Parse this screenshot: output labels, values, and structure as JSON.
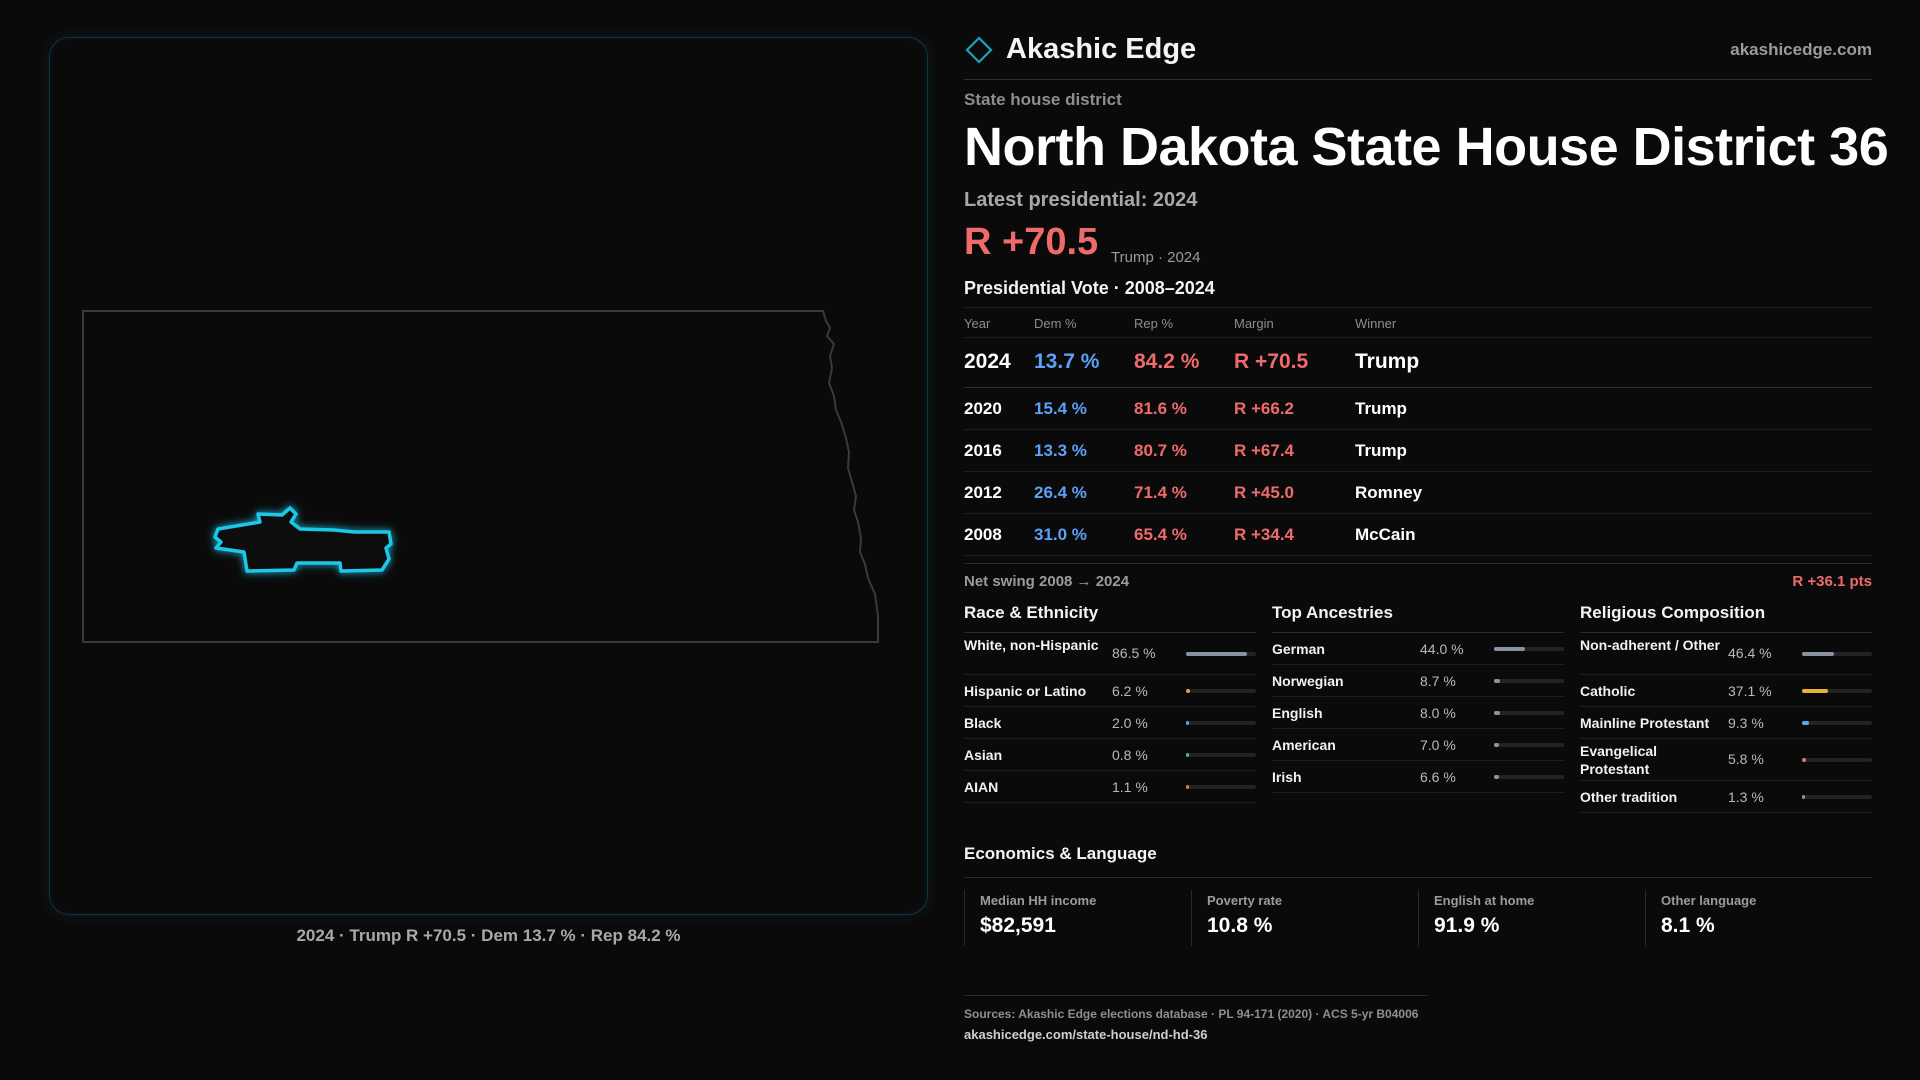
{
  "brand": {
    "name": "Akashic Edge",
    "url": "akashicedge.com"
  },
  "district": {
    "kind": "State house district",
    "title": "North Dakota State House District 36",
    "latest_label": "Latest presidential: 2024",
    "margin": "R +70.5",
    "margin_note": "Trump · 2024"
  },
  "map": {
    "caption": "2024 · Trump R +70.5 · Dem 13.7 % · Rep 84.2 %"
  },
  "presidential": {
    "title": "Presidential Vote · 2008–2024",
    "headers": {
      "year": "Year",
      "dem": "Dem %",
      "rep": "Rep %",
      "margin": "Margin",
      "winner": "Winner"
    },
    "rows": [
      {
        "year": "2024",
        "dem": "13.7 %",
        "rep": "84.2 %",
        "margin": "R +70.5",
        "winner": "Trump"
      },
      {
        "year": "2020",
        "dem": "15.4 %",
        "rep": "81.6 %",
        "margin": "R +66.2",
        "winner": "Trump"
      },
      {
        "year": "2016",
        "dem": "13.3 %",
        "rep": "80.7 %",
        "margin": "R +67.4",
        "winner": "Trump"
      },
      {
        "year": "2012",
        "dem": "26.4 %",
        "rep": "71.4 %",
        "margin": "R +45.0",
        "winner": "Romney"
      },
      {
        "year": "2008",
        "dem": "31.0 %",
        "rep": "65.4 %",
        "margin": "R +34.4",
        "winner": "McCain"
      }
    ],
    "swing_label": "Net swing 2008 → 2024",
    "swing_value": "R +36.1 pts"
  },
  "race": {
    "title": "Race & Ethnicity",
    "items": [
      {
        "label": "White, non-Hispanic",
        "pct": "86.5 %",
        "value": 86.5,
        "color": "#8a93a3"
      },
      {
        "label": "Hispanic or Latino",
        "pct": "6.2 %",
        "value": 6.2,
        "color": "#e0a23a"
      },
      {
        "label": "Black",
        "pct": "2.0 %",
        "value": 2.0,
        "color": "#5ea0f7"
      },
      {
        "label": "Asian",
        "pct": "0.8 %",
        "value": 0.8,
        "color": "#3fb39a"
      },
      {
        "label": "AIAN",
        "pct": "1.1 %",
        "value": 1.1,
        "color": "#d97a3a"
      }
    ]
  },
  "ancestries": {
    "title": "Top Ancestries",
    "items": [
      {
        "label": "German",
        "pct": "44.0 %",
        "value": 44.0,
        "color": "#8a93a3"
      },
      {
        "label": "Norwegian",
        "pct": "8.7 %",
        "value": 8.7,
        "color": "#8a93a3"
      },
      {
        "label": "English",
        "pct": "8.0 %",
        "value": 8.0,
        "color": "#8a93a3"
      },
      {
        "label": "American",
        "pct": "7.0 %",
        "value": 7.0,
        "color": "#8a93a3"
      },
      {
        "label": "Irish",
        "pct": "6.6 %",
        "value": 6.6,
        "color": "#8a93a3"
      }
    ]
  },
  "religion": {
    "title": "Religious Composition",
    "items": [
      {
        "label": "Non-adherent / Other",
        "pct": "46.4 %",
        "value": 46.4,
        "color": "#8a93a3"
      },
      {
        "label": "Catholic",
        "pct": "37.1 %",
        "value": 37.1,
        "color": "#e8b23a"
      },
      {
        "label": "Mainline Protestant",
        "pct": "9.3 %",
        "value": 9.3,
        "color": "#5ea0f7"
      },
      {
        "label": "Evangelical Protestant",
        "pct": "5.8 %",
        "value": 5.8,
        "color": "#ef6b6b"
      },
      {
        "label": "Other tradition",
        "pct": "1.3 %",
        "value": 1.3,
        "color": "#8a93a3"
      }
    ]
  },
  "economics": {
    "title": "Economics & Language",
    "cells": [
      {
        "label": "Median HH income",
        "value": "$82,591"
      },
      {
        "label": "Poverty rate",
        "value": "10.8 %"
      },
      {
        "label": "English at home",
        "value": "91.9 %"
      },
      {
        "label": "Other language",
        "value": "8.1 %"
      }
    ]
  },
  "sources": {
    "line": "Sources: Akashic Edge elections database · PL 94-171 (2020) · ACS 5-yr B04006",
    "url": "akashicedge.com/state-house/nd-hd-36"
  },
  "colors": {
    "dem": "#5ea0f7",
    "rep": "#ef6b6b",
    "accent": "#1fc8e8"
  }
}
